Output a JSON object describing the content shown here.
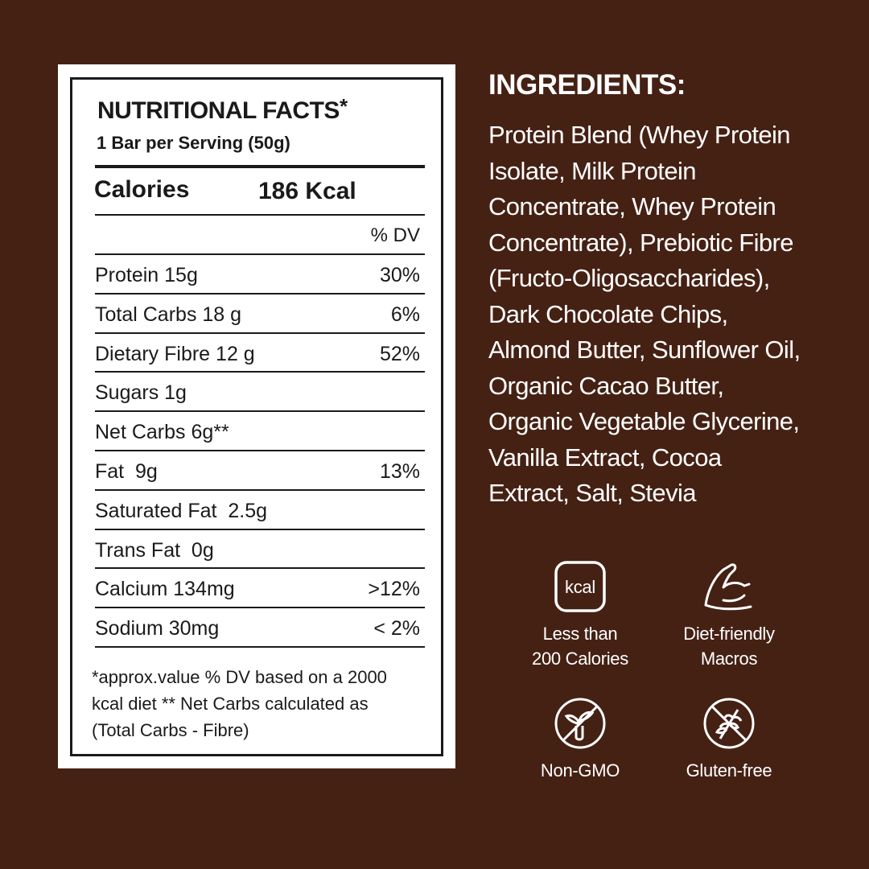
{
  "colors": {
    "background": "#452114",
    "card": "#ffffff",
    "text": "#1a1a1a"
  },
  "nutrition": {
    "title": "NUTRITIONAL FACTS",
    "title_mark": "*",
    "serving": "1 Bar per Serving (50g)",
    "calories_label": "Calories",
    "calories_value": "186 Kcal",
    "dv_header": "% DV",
    "rows": [
      {
        "name": "Protein 15g",
        "dv": "30%"
      },
      {
        "name": "Total Carbs 18 g",
        "dv": "6%"
      },
      {
        "name": "Dietary Fibre 12 g",
        "dv": "52%"
      },
      {
        "name": "Sugars 1g",
        "dv": ""
      },
      {
        "name": "Net Carbs 6g**",
        "dv": ""
      },
      {
        "name": "Fat  9g",
        "dv": "13%"
      },
      {
        "name": "Saturated Fat  2.5g",
        "dv": ""
      },
      {
        "name": "Trans Fat  0g",
        "dv": ""
      },
      {
        "name": "Calcium 134mg",
        "dv": ">12%"
      },
      {
        "name": "Sodium 30mg",
        "dv": "< 2%"
      }
    ],
    "footnote": [
      "*approx.value % DV based on a 2000",
      "kcal diet  ** Net Carbs calculated as",
      "(Total Carbs - Fibre)"
    ]
  },
  "ingredients": {
    "heading": "INGREDIENTS:",
    "lines": [
      "Protein Blend (Whey Protein",
      "Isolate, Milk Protein",
      "Concentrate, Whey Protein",
      "Concentrate), Prebiotic Fibre",
      "(Fructo-Oligosaccharides),",
      "Dark Chocolate Chips,",
      "Almond Butter, Sunflower Oil,",
      "Organic Cacao Butter,",
      "Organic Vegetable Glycerine,",
      "Vanilla Extract, Cocoa",
      "Extract, Salt, Stevia"
    ]
  },
  "badges": [
    {
      "icon": "kcal-icon",
      "icon_text": "kcal",
      "label": [
        "Less than",
        "200 Calories"
      ]
    },
    {
      "icon": "flexed-arm-icon",
      "label": [
        "Diet-friendly",
        "Macros"
      ]
    },
    {
      "icon": "non-gmo-icon",
      "label": [
        "Non-GMO"
      ]
    },
    {
      "icon": "gluten-free-icon",
      "label": [
        "Gluten-free"
      ]
    }
  ]
}
